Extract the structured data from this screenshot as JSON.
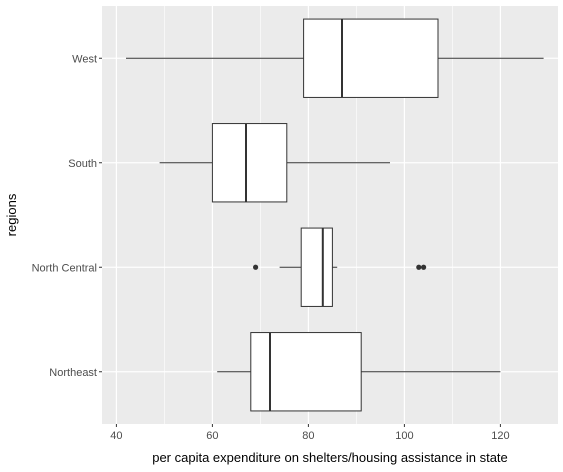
{
  "chart_data": {
    "type": "boxplot",
    "orientation": "horizontal",
    "xlabel": "per capita expenditure on shelters/housing assistance in state",
    "ylabel": "regions",
    "xlim": [
      37,
      132
    ],
    "x_ticks": [
      40,
      60,
      80,
      100,
      120
    ],
    "grid": true,
    "colors": {
      "panel": "#ebebeb",
      "grid": "#ffffff",
      "box_fill": "#ffffff",
      "stroke": "#333333",
      "text": "#4d4d4d"
    },
    "categories": [
      "West",
      "South",
      "North Central",
      "Northeast"
    ],
    "boxes": [
      {
        "category": "West",
        "whisker_low": 42,
        "q1": 79,
        "median": 87,
        "q3": 107,
        "whisker_high": 129,
        "outliers": []
      },
      {
        "category": "South",
        "whisker_low": 49,
        "q1": 60,
        "median": 67,
        "q3": 75.5,
        "whisker_high": 97,
        "outliers": []
      },
      {
        "category": "North Central",
        "whisker_low": 74,
        "q1": 78.5,
        "median": 83,
        "q3": 85,
        "whisker_high": 86,
        "outliers": [
          69,
          103,
          104
        ]
      },
      {
        "category": "Northeast",
        "whisker_low": 61,
        "q1": 68,
        "median": 72,
        "q3": 91,
        "whisker_high": 120,
        "outliers": []
      }
    ]
  }
}
